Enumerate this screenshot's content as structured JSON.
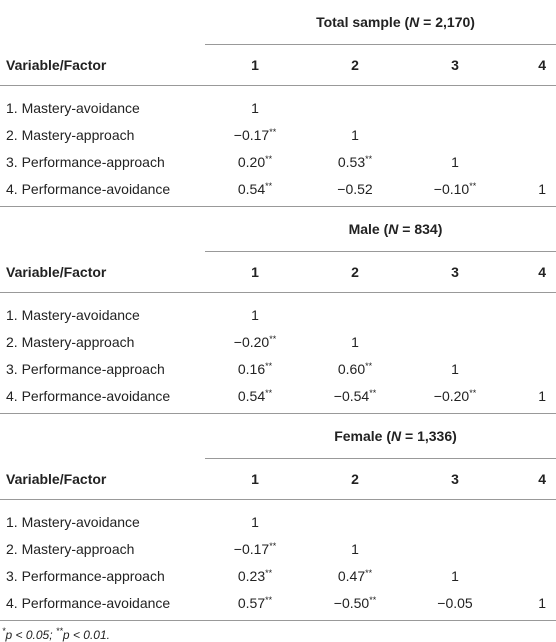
{
  "sections": [
    {
      "title": {
        "before": "Total sample (",
        "italic": "N",
        "after": " = 2,170)"
      },
      "columns": [
        "Variable/Factor",
        "1",
        "2",
        "3",
        "4"
      ],
      "rows": [
        [
          "1. Mastery-avoidance",
          "1"
        ],
        [
          "2. Mastery-approach",
          "−0.17**",
          "1"
        ],
        [
          "3. Performance-approach",
          "0.20**",
          "0.53**",
          "1"
        ],
        [
          "4. Performance-avoidance",
          "0.54**",
          "−0.52",
          "−0.10**",
          "1"
        ]
      ]
    },
    {
      "title": {
        "before": "Male (",
        "italic": "N",
        "after": " = 834)"
      },
      "columns": [
        "Variable/Factor",
        "1",
        "2",
        "3",
        "4"
      ],
      "rows": [
        [
          "1. Mastery-avoidance",
          "1"
        ],
        [
          "2. Mastery-approach",
          "−0.20**",
          "1"
        ],
        [
          "3. Performance-approach",
          "0.16**",
          "0.60**",
          "1"
        ],
        [
          "4. Performance-avoidance",
          "0.54**",
          "−0.54**",
          "−0.20**",
          "1"
        ]
      ]
    },
    {
      "title": {
        "before": "Female (",
        "italic": "N",
        "after": " = 1,336)"
      },
      "columns": [
        "Variable/Factor",
        "1",
        "2",
        "3",
        "4"
      ],
      "rows": [
        [
          "1. Mastery-avoidance",
          "1"
        ],
        [
          "2. Mastery-approach",
          "−0.17**",
          "1"
        ],
        [
          "3. Performance-approach",
          "0.23**",
          "0.47**",
          "1"
        ],
        [
          "4. Performance-avoidance",
          "0.57**",
          "−0.50**",
          "−0.05",
          "1"
        ]
      ]
    }
  ],
  "footnote": [
    {
      "text": "*",
      "sup": true
    },
    {
      "text": "p"
    },
    {
      "text": " < 0.05; "
    },
    {
      "text": "**",
      "sup": true
    },
    {
      "text": "p"
    },
    {
      "text": " < 0.01."
    }
  ]
}
